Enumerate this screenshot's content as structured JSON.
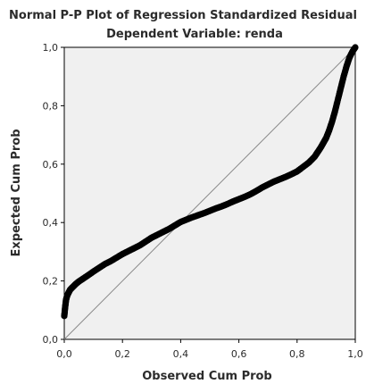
{
  "chart_data": {
    "type": "scatter",
    "title": "Normal P-P Plot of Regression Standardized Residual",
    "subtitle": "Dependent Variable: renda",
    "xlabel": "Observed Cum Prob",
    "ylabel": "Expected Cum Prob",
    "xlim": [
      0,
      1
    ],
    "ylim": [
      0,
      1
    ],
    "x_ticks": [
      "0,0",
      "0,2",
      "0,4",
      "0,6",
      "0,8",
      "1,0"
    ],
    "y_ticks": [
      "0,0",
      "0,2",
      "0,4",
      "0,6",
      "0,8",
      "1,0"
    ],
    "grid": false,
    "legend": "none",
    "reference_line": {
      "from": [
        0,
        0
      ],
      "to": [
        1,
        1
      ]
    },
    "colors": {
      "plot_background": "#f0f0f0",
      "points": "#000000",
      "reference_line": "#888888",
      "frame": "#000000"
    },
    "series": [
      {
        "values_xy": [
          [
            0.0,
            0.08
          ],
          [
            0.003,
            0.11
          ],
          [
            0.006,
            0.135
          ],
          [
            0.01,
            0.15
          ],
          [
            0.015,
            0.16
          ],
          [
            0.02,
            0.17
          ],
          [
            0.03,
            0.18
          ],
          [
            0.04,
            0.19
          ],
          [
            0.05,
            0.198
          ],
          [
            0.065,
            0.208
          ],
          [
            0.08,
            0.218
          ],
          [
            0.1,
            0.232
          ],
          [
            0.12,
            0.245
          ],
          [
            0.14,
            0.258
          ],
          [
            0.16,
            0.268
          ],
          [
            0.18,
            0.28
          ],
          [
            0.2,
            0.292
          ],
          [
            0.22,
            0.302
          ],
          [
            0.24,
            0.312
          ],
          [
            0.26,
            0.322
          ],
          [
            0.28,
            0.335
          ],
          [
            0.3,
            0.348
          ],
          [
            0.32,
            0.358
          ],
          [
            0.34,
            0.368
          ],
          [
            0.36,
            0.378
          ],
          [
            0.38,
            0.39
          ],
          [
            0.4,
            0.402
          ],
          [
            0.42,
            0.41
          ],
          [
            0.44,
            0.418
          ],
          [
            0.46,
            0.425
          ],
          [
            0.48,
            0.432
          ],
          [
            0.5,
            0.44
          ],
          [
            0.52,
            0.448
          ],
          [
            0.54,
            0.455
          ],
          [
            0.56,
            0.463
          ],
          [
            0.58,
            0.472
          ],
          [
            0.6,
            0.48
          ],
          [
            0.62,
            0.488
          ],
          [
            0.64,
            0.497
          ],
          [
            0.66,
            0.508
          ],
          [
            0.68,
            0.52
          ],
          [
            0.7,
            0.53
          ],
          [
            0.72,
            0.54
          ],
          [
            0.74,
            0.548
          ],
          [
            0.76,
            0.556
          ],
          [
            0.78,
            0.565
          ],
          [
            0.8,
            0.575
          ],
          [
            0.82,
            0.59
          ],
          [
            0.84,
            0.605
          ],
          [
            0.86,
            0.625
          ],
          [
            0.87,
            0.64
          ],
          [
            0.88,
            0.655
          ],
          [
            0.89,
            0.672
          ],
          [
            0.9,
            0.69
          ],
          [
            0.91,
            0.715
          ],
          [
            0.92,
            0.745
          ],
          [
            0.93,
            0.78
          ],
          [
            0.94,
            0.82
          ],
          [
            0.95,
            0.86
          ],
          [
            0.96,
            0.9
          ],
          [
            0.97,
            0.935
          ],
          [
            0.98,
            0.965
          ],
          [
            0.99,
            0.985
          ],
          [
            1.0,
            1.0
          ]
        ]
      }
    ]
  }
}
